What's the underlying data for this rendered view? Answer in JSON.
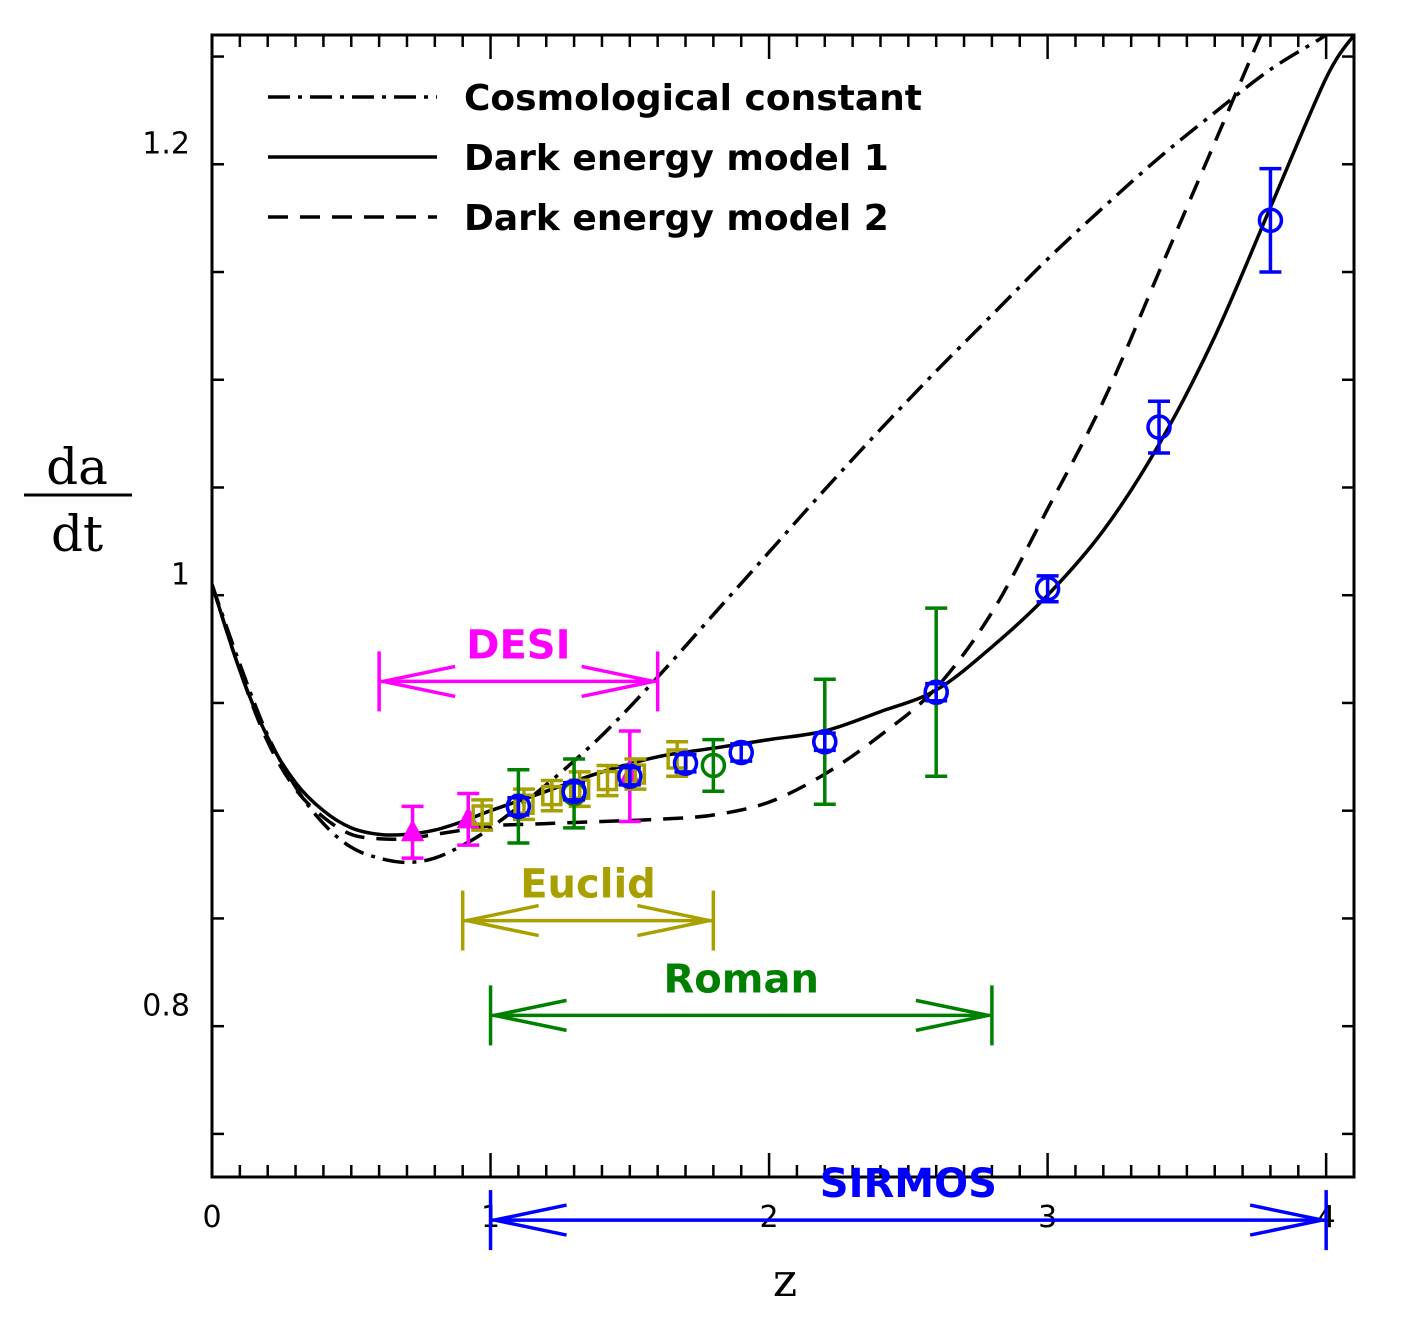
{
  "chart_data": {
    "type": "line",
    "title": "",
    "xlabel": "z",
    "ylabel_numerator": "da",
    "ylabel_denominator": "dt",
    "xlim": [
      0,
      4.1
    ],
    "ylim": [
      0.72,
      1.25
    ],
    "x_ticks": [
      0,
      1,
      2,
      3,
      4
    ],
    "x_tick_labels": [
      "0",
      "1",
      "2",
      "3",
      "4"
    ],
    "y_ticks": [
      0.8,
      1.0,
      1.2
    ],
    "y_tick_labels": [
      "0.8",
      "1",
      "1.2"
    ],
    "legend_position": "top-left",
    "series": [
      {
        "name": "Cosmological constant",
        "style": "dashdot",
        "x": [
          0,
          0.1,
          0.2,
          0.3,
          0.4,
          0.5,
          0.6,
          0.7,
          0.8,
          0.9,
          1.0,
          1.2,
          1.4,
          1.6,
          1.8,
          2.0,
          2.2,
          2.4,
          2.6,
          2.8,
          3.0,
          3.2,
          3.4,
          3.6,
          3.8,
          4.0,
          4.1
        ],
        "y": [
          0.995,
          0.958,
          0.925,
          0.901,
          0.884,
          0.873,
          0.868,
          0.866,
          0.868,
          0.874,
          0.882,
          0.902,
          0.925,
          0.952,
          0.981,
          1.01,
          1.039,
          1.067,
          1.094,
          1.12,
          1.146,
          1.17,
          1.193,
          1.214,
          1.234,
          1.25,
          1.26
        ]
      },
      {
        "name": "Dark energy model 1",
        "style": "solid",
        "x": [
          0,
          0.1,
          0.2,
          0.3,
          0.4,
          0.5,
          0.6,
          0.7,
          0.8,
          0.9,
          1.0,
          1.2,
          1.4,
          1.6,
          1.8,
          2.0,
          2.2,
          2.4,
          2.6,
          2.8,
          3.0,
          3.2,
          3.4,
          3.6,
          3.8,
          4.0,
          4.1
        ],
        "y": [
          0.995,
          0.955,
          0.924,
          0.903,
          0.89,
          0.882,
          0.879,
          0.879,
          0.881,
          0.885,
          0.89,
          0.899,
          0.908,
          0.915,
          0.919,
          0.923,
          0.927,
          0.936,
          0.946,
          0.966,
          0.99,
          1.02,
          1.06,
          1.11,
          1.17,
          1.23,
          1.25
        ]
      },
      {
        "name": "Dark energy model 2",
        "style": "dashed",
        "x": [
          0,
          0.1,
          0.2,
          0.3,
          0.4,
          0.5,
          0.6,
          0.7,
          0.8,
          0.9,
          1.0,
          1.2,
          1.4,
          1.6,
          1.8,
          2.0,
          2.2,
          2.4,
          2.6,
          2.8,
          3.0,
          3.2,
          3.4,
          3.6,
          3.8,
          3.85
        ],
        "y": [
          0.995,
          0.955,
          0.922,
          0.9,
          0.887,
          0.879,
          0.877,
          0.877,
          0.879,
          0.881,
          0.883,
          0.884,
          0.885,
          0.886,
          0.888,
          0.894,
          0.907,
          0.925,
          0.947,
          0.982,
          1.03,
          1.08,
          1.14,
          1.2,
          1.26,
          1.27
        ]
      }
    ],
    "points": [
      {
        "survey": "DESI",
        "marker": "triangle",
        "color": "#ff00ff",
        "data": [
          {
            "x": 0.72,
            "y": 0.88,
            "err": 0.012
          },
          {
            "x": 0.92,
            "y": 0.886,
            "err": 0.012
          },
          {
            "x": 1.5,
            "y": 0.906,
            "err": 0.021
          }
        ]
      },
      {
        "survey": "Euclid",
        "marker": "square",
        "color": "#a8a000",
        "data": [
          {
            "x": 0.97,
            "y": 0.888,
            "err": 0.007
          },
          {
            "x": 1.12,
            "y": 0.893,
            "err": 0.007
          },
          {
            "x": 1.22,
            "y": 0.897,
            "err": 0.007
          },
          {
            "x": 1.32,
            "y": 0.9,
            "err": 0.008
          },
          {
            "x": 1.42,
            "y": 0.904,
            "err": 0.007
          },
          {
            "x": 1.52,
            "y": 0.907,
            "err": 0.007
          },
          {
            "x": 1.67,
            "y": 0.914,
            "err": 0.008
          }
        ]
      },
      {
        "survey": "Roman",
        "marker": "circle",
        "color": "#008000",
        "data": [
          {
            "x": 1.1,
            "y": 0.892,
            "err": 0.017
          },
          {
            "x": 1.3,
            "y": 0.898,
            "err": 0.016
          },
          {
            "x": 1.8,
            "y": 0.911,
            "err": 0.012
          },
          {
            "x": 2.2,
            "y": 0.922,
            "err": 0.029
          },
          {
            "x": 2.6,
            "y": 0.945,
            "err": 0.039
          }
        ]
      },
      {
        "survey": "SIRMOS",
        "marker": "circle",
        "color": "#0000ff",
        "data": [
          {
            "x": 1.1,
            "y": 0.892,
            "err": 0.004
          },
          {
            "x": 1.3,
            "y": 0.899,
            "err": 0.004
          },
          {
            "x": 1.5,
            "y": 0.906,
            "err": 0.004
          },
          {
            "x": 1.7,
            "y": 0.912,
            "err": 0.004
          },
          {
            "x": 1.9,
            "y": 0.917,
            "err": 0.004
          },
          {
            "x": 2.2,
            "y": 0.922,
            "err": 0.004
          },
          {
            "x": 2.6,
            "y": 0.945,
            "err": 0.004
          },
          {
            "x": 3.0,
            "y": 0.993,
            "err": 0.006
          },
          {
            "x": 3.4,
            "y": 1.068,
            "err": 0.012
          },
          {
            "x": 3.8,
            "y": 1.164,
            "err": 0.024
          }
        ]
      }
    ],
    "ranges": [
      {
        "label": "DESI",
        "color": "#ff00ff",
        "x_start": 0.6,
        "x_end": 1.6,
        "y": 0.95
      },
      {
        "label": "Euclid",
        "color": "#a8a000",
        "x_start": 0.9,
        "x_end": 1.8,
        "y": 0.839
      },
      {
        "label": "Roman",
        "color": "#008000",
        "x_start": 1.0,
        "x_end": 2.8,
        "y": 0.795
      },
      {
        "label": "SIRMOS",
        "color": "#0000ff",
        "x_start": 1.0,
        "x_end": 4.0,
        "y": 0.7
      }
    ]
  }
}
